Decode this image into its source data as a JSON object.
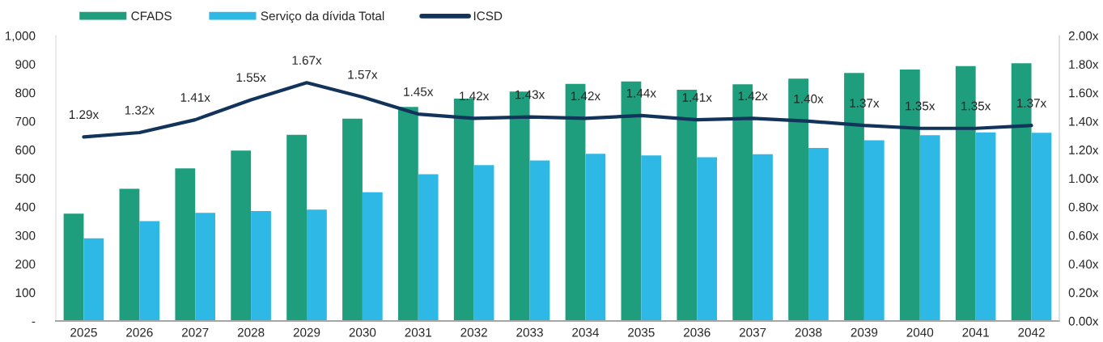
{
  "chart_data": {
    "type": "bar",
    "categories": [
      "2025",
      "2026",
      "2027",
      "2028",
      "2029",
      "2030",
      "2031",
      "2032",
      "2033",
      "2034",
      "2035",
      "2036",
      "2037",
      "2038",
      "2039",
      "2040",
      "2041",
      "2042"
    ],
    "series": [
      {
        "name": "CFADS",
        "color": "#1f9e7e",
        "values": [
          376,
          463,
          535,
          597,
          652,
          709,
          750,
          779,
          804,
          831,
          839,
          810,
          829,
          849,
          869,
          881,
          893,
          903
        ]
      },
      {
        "name": "Serviço da dívida Total",
        "color": "#2db8e6",
        "values": [
          290,
          350,
          379,
          385,
          390,
          451,
          514,
          546,
          562,
          586,
          580,
          574,
          584,
          606,
          633,
          651,
          661,
          659
        ]
      },
      {
        "name": "ICSD",
        "type": "line",
        "axis": "y2",
        "color": "#13345a",
        "values": [
          1.29,
          1.32,
          1.41,
          1.55,
          1.67,
          1.57,
          1.45,
          1.42,
          1.43,
          1.42,
          1.44,
          1.41,
          1.42,
          1.4,
          1.37,
          1.35,
          1.35,
          1.37
        ],
        "value_labels": [
          "1.29x",
          "1.32x",
          "1.41x",
          "1.55x",
          "1.67x",
          "1.57x",
          "1.45x",
          "1.42x",
          "1.43x",
          "1.42x",
          "1.44x",
          "1.41x",
          "1.42x",
          "1.40x",
          "1.37x",
          "1.35x",
          "1.35x",
          "1.37x"
        ]
      }
    ],
    "ylim": [
      0,
      1000
    ],
    "yticks": [
      {
        "value": 0,
        "label": "-"
      },
      100,
      200,
      300,
      400,
      500,
      600,
      700,
      800,
      900,
      {
        "value": 1000,
        "label": "1,000"
      }
    ],
    "y2lim": [
      0,
      2
    ],
    "y2ticks": [
      {
        "value": 0,
        "label": "0.00x"
      },
      {
        "value": 0.2,
        "label": "0.20x"
      },
      {
        "value": 0.4,
        "label": "0.40x"
      },
      {
        "value": 0.6,
        "label": "0.60x"
      },
      {
        "value": 0.8,
        "label": "0.80x"
      },
      {
        "value": 1.0,
        "label": "1.00x"
      },
      {
        "value": 1.2,
        "label": "1.20x"
      },
      {
        "value": 1.4,
        "label": "1.40x"
      },
      {
        "value": 1.6,
        "label": "1.60x"
      },
      {
        "value": 1.8,
        "label": "1.80x"
      },
      {
        "value": 2.0,
        "label": "2.00x"
      }
    ],
    "legend": "top"
  }
}
